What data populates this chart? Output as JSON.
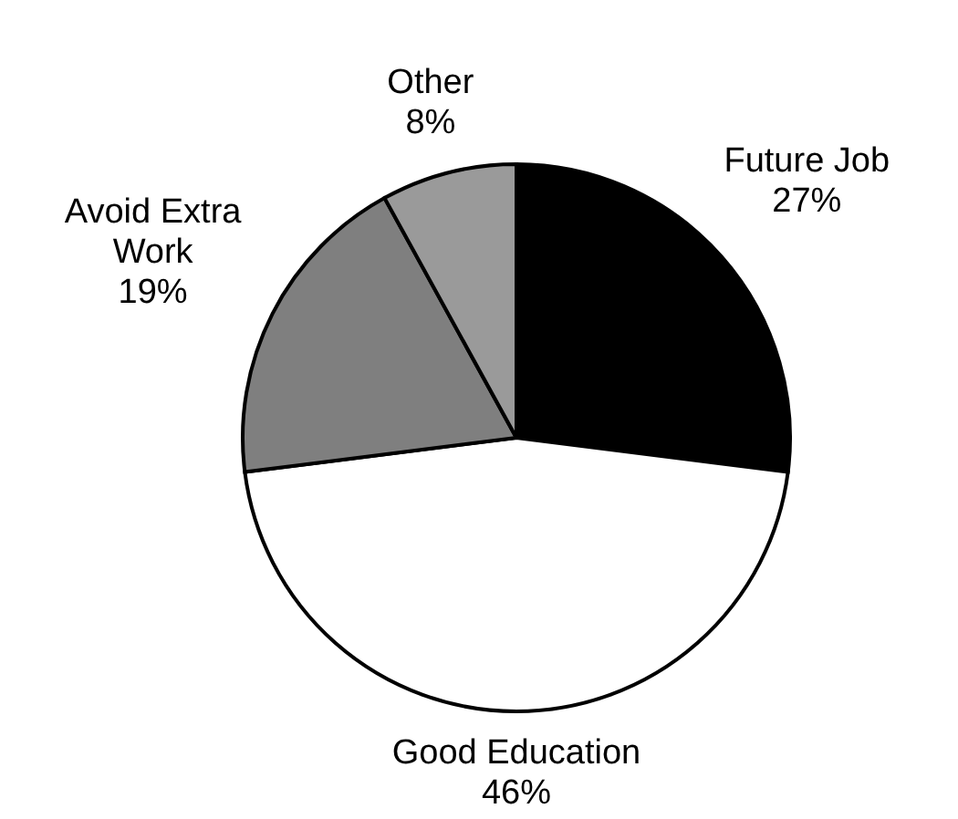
{
  "chart_data": {
    "type": "pie",
    "categories": [
      "Future Job",
      "Good Education",
      "Avoid Extra Work",
      "Other"
    ],
    "values": [
      27,
      46,
      19,
      8
    ],
    "value_labels": [
      "27%",
      "46%",
      "19%",
      "8%"
    ],
    "colors": [
      "#000000",
      "#ffffff",
      "#7f7f7f",
      "#9a9a9a"
    ]
  }
}
